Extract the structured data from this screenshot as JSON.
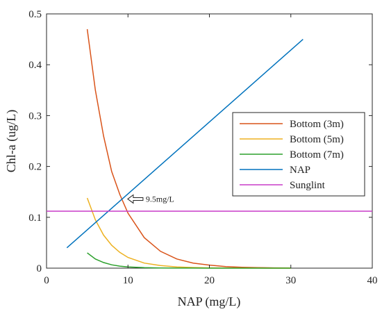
{
  "chart_data": {
    "type": "line",
    "xlabel": "NAP (mg/L)",
    "ylabel": "Chl-a (ug/L)",
    "xlim": [
      0,
      40
    ],
    "ylim": [
      0,
      0.5
    ],
    "xticks": [
      "0",
      "10",
      "20",
      "30",
      "40"
    ],
    "yticks": [
      "0",
      "0.1",
      "0.2",
      "0.3",
      "0.4",
      "0.5"
    ],
    "grid": false,
    "legend_position": "center-right",
    "series": [
      {
        "name": "Bottom (3m)",
        "color": "#d95319",
        "x": [
          5,
          6,
          7,
          8,
          9,
          10,
          12,
          14,
          16,
          18,
          20,
          22,
          24,
          26,
          28,
          30
        ],
        "y": [
          0.47,
          0.35,
          0.26,
          0.19,
          0.145,
          0.108,
          0.06,
          0.033,
          0.018,
          0.01,
          0.006,
          0.003,
          0.0017,
          0.001,
          0.0005,
          0.0003
        ]
      },
      {
        "name": "Bottom (5m)",
        "color": "#edb120",
        "x": [
          5,
          6,
          7,
          8,
          9,
          10,
          12,
          14,
          16,
          18,
          20,
          22,
          24,
          26,
          28,
          30
        ],
        "y": [
          0.138,
          0.095,
          0.065,
          0.045,
          0.031,
          0.021,
          0.01,
          0.005,
          0.0025,
          0.0012,
          0.0006,
          0.0003,
          0.0001,
          0.0001,
          0,
          0
        ]
      },
      {
        "name": "Bottom (7m)",
        "color": "#2ca02c",
        "x": [
          5,
          6,
          7,
          8,
          9,
          10,
          12,
          14,
          16,
          18,
          20,
          25,
          30
        ],
        "y": [
          0.03,
          0.018,
          0.011,
          0.0065,
          0.004,
          0.0024,
          0.001,
          0.0004,
          0.0002,
          0.0001,
          0,
          0,
          0
        ]
      },
      {
        "name": "NAP",
        "color": "#0072bd",
        "x": [
          2.5,
          31.5
        ],
        "y": [
          0.04,
          0.45
        ]
      },
      {
        "name": "Sunglint",
        "color": "#c83cc8",
        "x": [
          0,
          40
        ],
        "y": [
          0.112,
          0.112
        ]
      }
    ],
    "annotations": [
      {
        "text": "9.5mg/L",
        "x": 9.8,
        "y": 0.136
      }
    ]
  }
}
